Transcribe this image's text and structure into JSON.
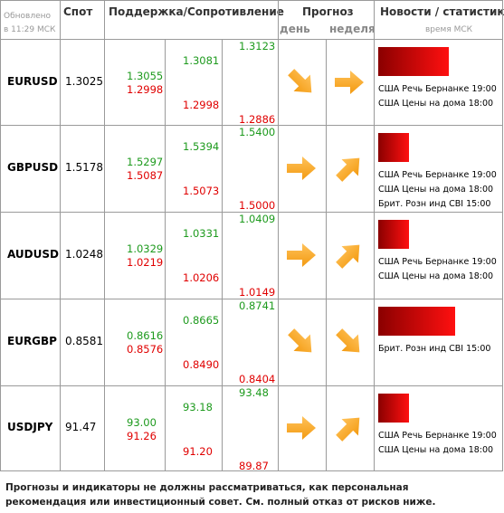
{
  "header": {
    "updated": "Обновлено",
    "updated_time": "в 11:29 МСК",
    "spot": "Спот",
    "levels": "Поддержка/Сопротивление",
    "forecast": "Прогноз",
    "day": "день",
    "week": "неделя",
    "news": "Новости / статистика",
    "news_time": "время МСК"
  },
  "rows": [
    {
      "pair": "EURUSD",
      "spot": "1.3025",
      "resistance": [
        "1.3055",
        "1.3081",
        "1.3123"
      ],
      "support": [
        "1.2998",
        "1.2998",
        "1.2886"
      ],
      "news": [
        "США Речь Бернанке 19:00",
        "США Цены на дома 18:00"
      ]
    },
    {
      "pair": "GBPUSD",
      "spot": "1.5178",
      "resistance": [
        "1.5297",
        "1.5394",
        "1.5400"
      ],
      "support": [
        "1.5087",
        "1.5073",
        "1.5000"
      ],
      "news": [
        "США Речь Бернанке 19:00",
        "США Цены на дома 18:00",
        "Брит. Розн инд CBI 15:00"
      ]
    },
    {
      "pair": "AUDUSD",
      "spot": "1.0248",
      "resistance": [
        "1.0329",
        "1.0331",
        "1.0409"
      ],
      "support": [
        "1.0219",
        "1.0206",
        "1.0149"
      ],
      "news": [
        "США Речь Бернанке 19:00",
        "США Цены на дома 18:00"
      ]
    },
    {
      "pair": "EURGBP",
      "spot": "0.8581",
      "resistance": [
        "0.8616",
        "0.8665",
        "0.8741"
      ],
      "support": [
        "0.8576",
        "0.8490",
        "0.8404"
      ],
      "news": [
        "Брит. Розн инд CBI 15:00"
      ]
    },
    {
      "pair": "USDJPY",
      "spot": "91.47",
      "resistance": [
        "93.00",
        "93.18",
        "93.48"
      ],
      "support": [
        "91.26",
        "91.20",
        "89.87"
      ],
      "news": [
        "США Речь Бернанке 19:00",
        "США Цены на дома 18:00"
      ]
    }
  ],
  "disclaimer": "Прогнозы и индикаторы не должны рассматриваться, как персональная рекомендация или инвестиционный совет. См. полный отказ от рисков ниже."
}
